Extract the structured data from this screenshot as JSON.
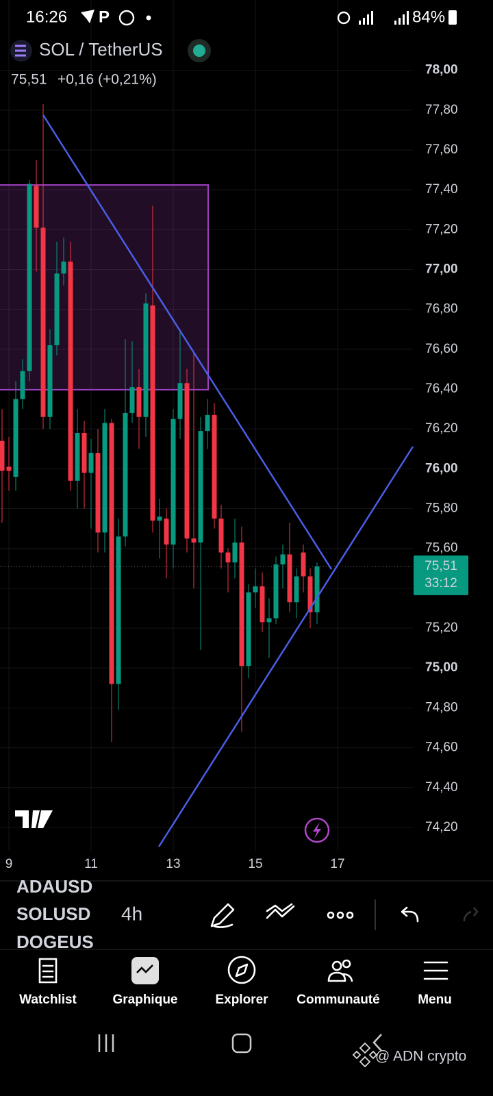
{
  "status_bar": {
    "time": "16:26",
    "battery": "84%"
  },
  "header": {
    "symbol": "SOL / TetherUS",
    "price": "75,51",
    "change": "+0,16 (+0,21%)"
  },
  "chart_data": {
    "type": "candlestick",
    "categories": [
      null,
      "9",
      null,
      null,
      null,
      null,
      null,
      null,
      null,
      null,
      null,
      null,
      null,
      "11",
      null,
      null,
      null,
      null,
      null,
      null,
      null,
      null,
      null,
      null,
      null,
      "13",
      null,
      null,
      null,
      null,
      null,
      null,
      null,
      null,
      null,
      null,
      null,
      "15",
      null,
      null,
      null,
      null,
      null,
      null,
      null,
      null,
      null,
      null,
      null,
      "17"
    ],
    "open": [
      76.14,
      76.01,
      75.96,
      76.35,
      76.49,
      77.42,
      77.21,
      76.26,
      76.62,
      76.98,
      77.04,
      75.94,
      76.18,
      75.98,
      76.08,
      75.68,
      76.23,
      74.92,
      75.66,
      76.28,
      76.41,
      76.26,
      76.82,
      75.74,
      75.75,
      75.62,
      76.25,
      76.43,
      75.65,
      75.63,
      76.19,
      76.27,
      75.75,
      75.58,
      75.53,
      75.63,
      75.01,
      75.38,
      75.41,
      75.23,
      75.25,
      75.52,
      75.57,
      75.33,
      75.58,
      75.46,
      75.28,
      null,
      null,
      null
    ],
    "high": [
      76.3,
      76.16,
      76.44,
      76.55,
      77.45,
      77.55,
      77.83,
      76.7,
      77.14,
      77.16,
      77.14,
      76.3,
      76.24,
      76.15,
      76.2,
      76.3,
      76.25,
      75.75,
      76.65,
      76.64,
      76.5,
      76.88,
      77.32,
      75.85,
      75.8,
      76.3,
      76.7,
      76.5,
      76.59,
      76.26,
      76.35,
      76.33,
      75.82,
      75.6,
      75.75,
      75.71,
      75.42,
      75.5,
      75.48,
      75.35,
      75.56,
      75.62,
      75.73,
      75.5,
      75.62,
      75.5,
      75.53,
      null,
      null,
      null
    ],
    "low": [
      75.73,
      75.89,
      75.89,
      76.3,
      76.44,
      76.99,
      76.2,
      76.2,
      76.57,
      76.92,
      75.89,
      75.8,
      75.8,
      75.7,
      75.58,
      75.58,
      74.63,
      74.79,
      75.61,
      76.23,
      76.1,
      76.16,
      75.68,
      75.55,
      75.45,
      75.5,
      76.15,
      75.58,
      75.4,
      75.09,
      76.1,
      75.7,
      75.5,
      75.38,
      75.45,
      74.68,
      74.95,
      75.3,
      75.18,
      75.05,
      75.22,
      75.4,
      75.28,
      75.25,
      75.38,
      75.2,
      75.22,
      null,
      null,
      null
    ],
    "close": [
      75.99,
      75.99,
      76.35,
      76.49,
      77.43,
      77.21,
      76.26,
      76.62,
      76.98,
      77.04,
      75.94,
      76.18,
      75.98,
      76.08,
      75.68,
      76.23,
      74.92,
      75.66,
      76.28,
      76.41,
      76.26,
      76.83,
      75.74,
      75.76,
      75.62,
      76.25,
      76.43,
      75.65,
      75.63,
      76.19,
      76.27,
      75.75,
      75.58,
      75.53,
      75.63,
      75.01,
      75.38,
      75.41,
      75.23,
      75.25,
      75.52,
      75.57,
      75.33,
      75.46,
      75.46,
      75.28,
      75.51,
      null,
      null,
      null
    ],
    "up_color": "#089981",
    "down_color": "#f23645",
    "ylim": [
      74.1,
      78.15
    ],
    "yticks": [
      {
        "value": 74.2,
        "label": "74,20"
      },
      {
        "value": 74.4,
        "label": "74,40"
      },
      {
        "value": 74.6,
        "label": "74,60"
      },
      {
        "value": 74.8,
        "label": "74,80"
      },
      {
        "value": 75,
        "label": "75,00"
      },
      {
        "value": 75.2,
        "label": "75,20"
      },
      {
        "value": 75.4,
        "label": "75,40"
      },
      {
        "value": 75.6,
        "label": "75,60"
      },
      {
        "value": 75.8,
        "label": "75,80"
      },
      {
        "value": 76,
        "label": "76,00"
      },
      {
        "value": 76.2,
        "label": "76,20"
      },
      {
        "value": 76.4,
        "label": "76,40"
      },
      {
        "value": 76.6,
        "label": "76,60"
      },
      {
        "value": 76.8,
        "label": "76,80"
      },
      {
        "value": 77,
        "label": "77,00"
      },
      {
        "value": 77.2,
        "label": "77,20"
      },
      {
        "value": 77.4,
        "label": "77,40"
      },
      {
        "value": 77.6,
        "label": "77,60"
      },
      {
        "value": 77.8,
        "label": "77,80"
      },
      {
        "value": 78,
        "label": "78,00"
      }
    ],
    "last_price": {
      "value": 75.51,
      "label": "75,51"
    },
    "countdown": "33:12",
    "grid": true
  },
  "toolbar": {
    "symbols": [
      "ADAUSD",
      "SOLUSD",
      "DOGEUS"
    ],
    "interval": "4h"
  },
  "nav": {
    "items": [
      "Watchlist",
      "Graphique",
      "Explorer",
      "Communauté",
      "Menu"
    ]
  },
  "watermark": "@ ADN crypto"
}
